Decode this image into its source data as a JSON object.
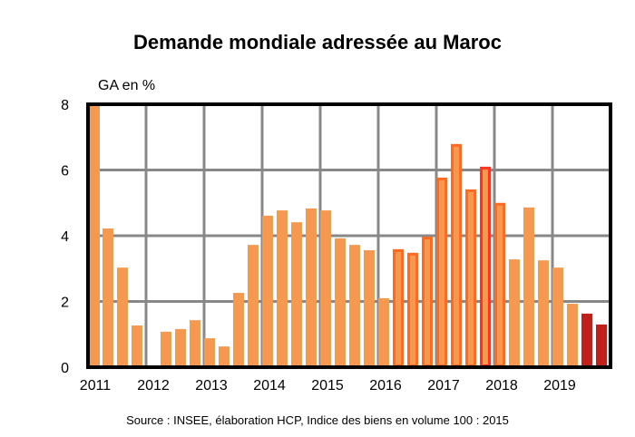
{
  "chart_data": {
    "type": "bar",
    "title": "Demande mondiale adressée au Maroc",
    "ylabel": "GA en %",
    "xlabel": "",
    "ylim": [
      0,
      8
    ],
    "yticks": [
      "0",
      "2",
      "4",
      "6",
      "8"
    ],
    "ytick_values": [
      0,
      2,
      4,
      6,
      8
    ],
    "xtick_labels": [
      "2011",
      "2012",
      "2013",
      "2014",
      "2015",
      "2016",
      "2017",
      "2018",
      "2019"
    ],
    "grid": true,
    "legend": "none",
    "source": "Source : INSEE, élaboration  HCP, Indice  des biens en volume  100 : 2015",
    "categories": [
      "2011T1",
      "2011T2",
      "2011T3",
      "2011T4",
      "2012T1",
      "2012T2",
      "2012T3",
      "2012T4",
      "2013T1",
      "2013T2",
      "2013T3",
      "2013T4",
      "2014T1",
      "2014T2",
      "2014T3",
      "2014T4",
      "2015T1",
      "2015T2",
      "2015T3",
      "2015T4",
      "2016T1",
      "2016T2",
      "2016T3",
      "2016T4",
      "2017T1",
      "2017T2",
      "2017T3",
      "2017T4",
      "2018T1",
      "2018T2",
      "2018T3",
      "2018T4",
      "2019T1",
      "2019T2",
      "2019T3",
      "2019T4"
    ],
    "values": [
      8.0,
      4.22,
      3.03,
      1.27,
      -0.05,
      1.08,
      1.16,
      1.43,
      0.88,
      0.63,
      2.26,
      3.72,
      4.61,
      4.77,
      4.41,
      4.83,
      4.77,
      3.92,
      3.72,
      3.56,
      2.1,
      3.59,
      3.48,
      3.97,
      5.77,
      6.79,
      5.41,
      6.1,
      5.0,
      3.28,
      4.86,
      3.25,
      3.03,
      1.93,
      1.63,
      1.3
    ],
    "bar_styles": [
      "normal",
      "normal",
      "normal",
      "normal",
      "normal",
      "normal",
      "normal",
      "normal",
      "normal",
      "normal",
      "normal",
      "normal",
      "normal",
      "normal",
      "normal",
      "normal",
      "normal",
      "normal",
      "normal",
      "normal",
      "normal",
      "outlined",
      "outlined",
      "outlined",
      "outlined",
      "outlined",
      "outlined",
      "outlined-red",
      "outlined",
      "normal",
      "normal",
      "normal",
      "normal",
      "normal",
      "forecast",
      "forecast"
    ],
    "colors": {
      "fill": "#F4994F",
      "outline": "#FF6A20",
      "outline_red": "#FF3322",
      "forecast": "#C0201A",
      "grid": "#888888",
      "frame": "#000000"
    }
  }
}
